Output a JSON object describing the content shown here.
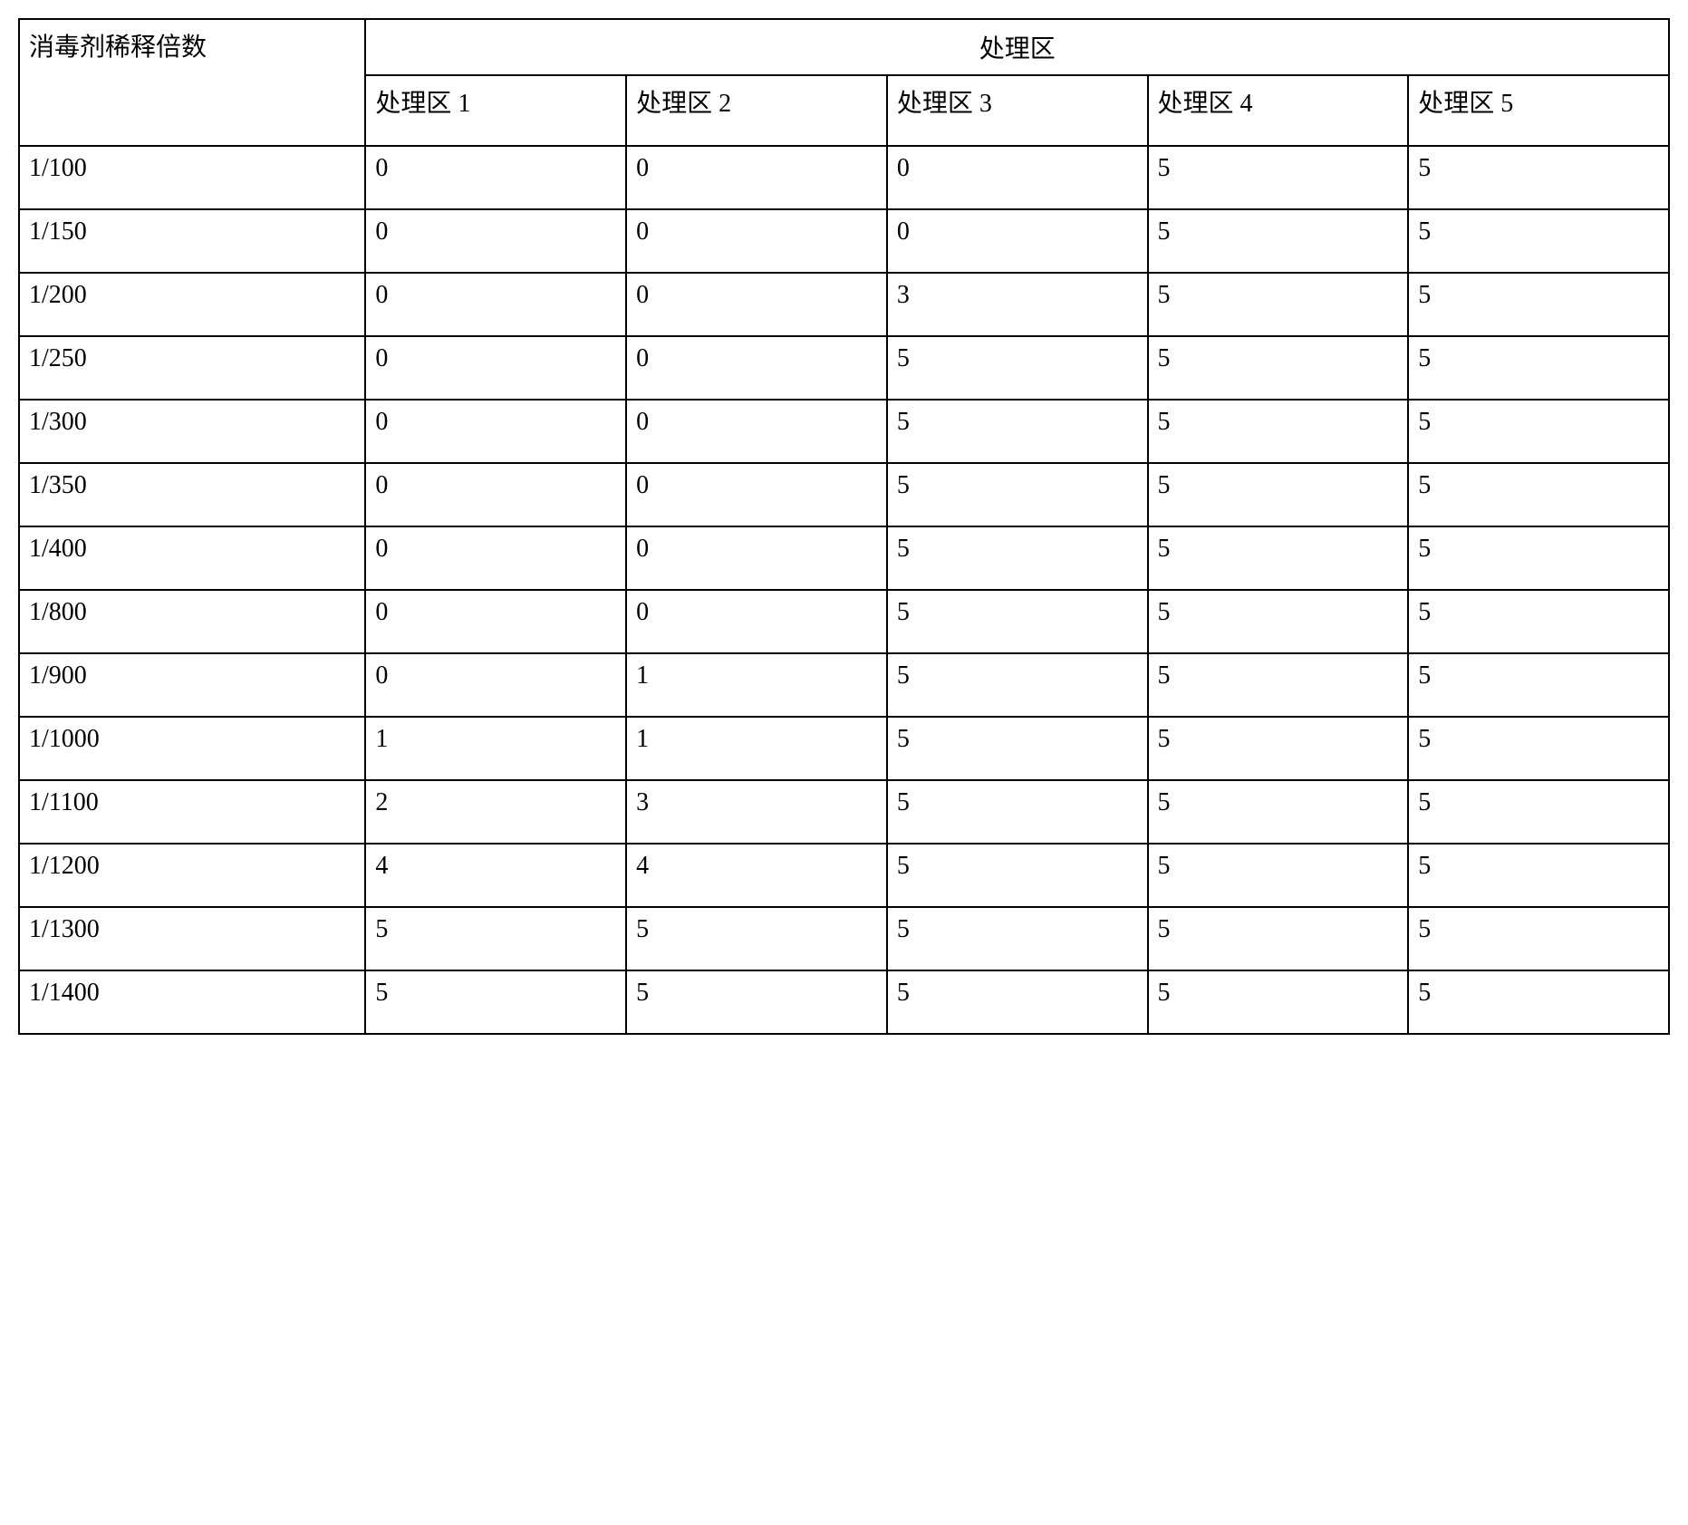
{
  "table": {
    "type": "table",
    "background_color": "#ffffff",
    "border_color": "#000000",
    "border_width": 2,
    "text_color": "#000000",
    "font_family": "SimSun",
    "cell_fontsize": 28,
    "header_fontsize": 28,
    "row_header_label": "消毒剂稀释倍数",
    "group_header_label": "处理区",
    "column_headers": [
      "处理区 1",
      "处理区 2",
      "处理区 3",
      "处理区 4",
      "处理区 5"
    ],
    "column_widths_pct": [
      21,
      15.8,
      15.8,
      15.8,
      15.8,
      15.8
    ],
    "cell_align": "left",
    "cell_valign": "top",
    "group_header_align": "center",
    "rows": [
      {
        "label": "1/100",
        "values": [
          "0",
          "0",
          "0",
          "5",
          "5"
        ]
      },
      {
        "label": "1/150",
        "values": [
          "0",
          "0",
          "0",
          "5",
          "5"
        ]
      },
      {
        "label": "1/200",
        "values": [
          "0",
          "0",
          "3",
          "5",
          "5"
        ]
      },
      {
        "label": "1/250",
        "values": [
          "0",
          "0",
          "5",
          "5",
          "5"
        ]
      },
      {
        "label": "1/300",
        "values": [
          "0",
          "0",
          "5",
          "5",
          "5"
        ]
      },
      {
        "label": "1/350",
        "values": [
          "0",
          "0",
          "5",
          "5",
          "5"
        ]
      },
      {
        "label": "1/400",
        "values": [
          "0",
          "0",
          "5",
          "5",
          "5"
        ]
      },
      {
        "label": "1/800",
        "values": [
          "0",
          "0",
          "5",
          "5",
          "5"
        ]
      },
      {
        "label": "1/900",
        "values": [
          "0",
          "1",
          "5",
          "5",
          "5"
        ]
      },
      {
        "label": "1/1000",
        "values": [
          "1",
          "1",
          "5",
          "5",
          "5"
        ]
      },
      {
        "label": "1/1100",
        "values": [
          "2",
          "3",
          "5",
          "5",
          "5"
        ]
      },
      {
        "label": "1/1200",
        "values": [
          "4",
          "4",
          "5",
          "5",
          "5"
        ]
      },
      {
        "label": "1/1300",
        "values": [
          "5",
          "5",
          "5",
          "5",
          "5"
        ]
      },
      {
        "label": "1/1400",
        "values": [
          "5",
          "5",
          "5",
          "5",
          "5"
        ]
      }
    ]
  }
}
